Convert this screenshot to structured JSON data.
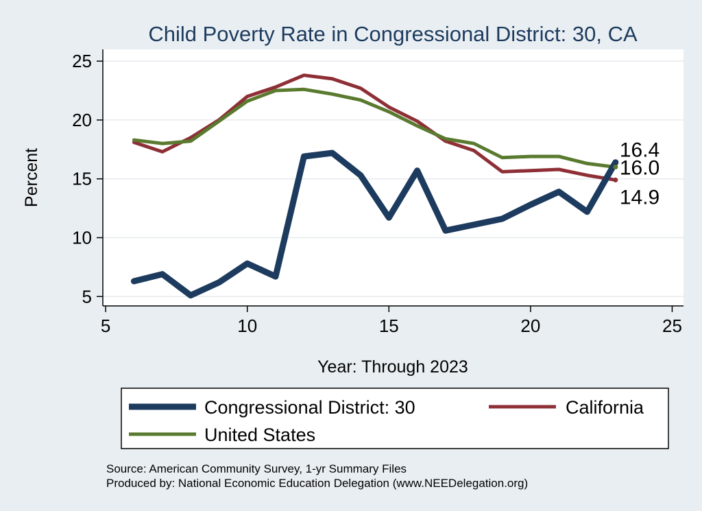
{
  "chart_data": {
    "type": "line",
    "title": "Child Poverty Rate in Congressional District:  30, CA",
    "xlabel": "Year: Through 2023",
    "ylabel": "Percent",
    "xlim": [
      4.9,
      25.4
    ],
    "ylim": [
      4.2,
      26
    ],
    "xticks": [
      5,
      10,
      15,
      20,
      25
    ],
    "yticks": [
      5,
      10,
      15,
      20,
      25
    ],
    "grid": true,
    "legend_position": "bottom",
    "series": [
      {
        "name": "Congressional District:  30",
        "color": "#1d3b5e",
        "width": 9,
        "x": [
          6,
          7,
          8,
          9,
          10,
          11,
          12,
          13,
          14,
          15,
          16,
          17,
          18,
          19,
          20,
          21,
          22,
          23
        ],
        "y": [
          6.3,
          6.9,
          5.1,
          6.2,
          7.8,
          6.7,
          16.9,
          17.2,
          15.3,
          11.7,
          15.7,
          10.6,
          11.1,
          11.6,
          12.8,
          13.9,
          12.2,
          16.4
        ],
        "end_label": "16.4"
      },
      {
        "name": "California",
        "color": "#8e2f36",
        "width": 5,
        "x": [
          6,
          7,
          8,
          9,
          10,
          11,
          12,
          13,
          14,
          15,
          16,
          17,
          18,
          19,
          20,
          21,
          22,
          23
        ],
        "y": [
          18.1,
          17.3,
          18.5,
          20.0,
          22.0,
          22.8,
          23.8,
          23.5,
          22.7,
          21.1,
          19.9,
          18.2,
          17.4,
          15.6,
          15.7,
          15.8,
          15.3,
          14.9
        ],
        "end_label": "14.9"
      },
      {
        "name": "United States",
        "color": "#5a7a2f",
        "width": 5,
        "x": [
          6,
          7,
          8,
          9,
          10,
          11,
          12,
          13,
          14,
          15,
          16,
          17,
          18,
          19,
          20,
          21,
          22,
          23
        ],
        "y": [
          18.3,
          18.0,
          18.2,
          19.9,
          21.6,
          22.5,
          22.6,
          22.2,
          21.7,
          20.7,
          19.5,
          18.4,
          18.0,
          16.8,
          16.9,
          16.9,
          16.3,
          16.0
        ],
        "end_label": "16.0"
      }
    ],
    "source_note": "Source: American Community Survey, 1-yr Summary Files",
    "producer_note": "Produced by: National Economic Education Delegation (www.NEEDelegation.org)"
  }
}
